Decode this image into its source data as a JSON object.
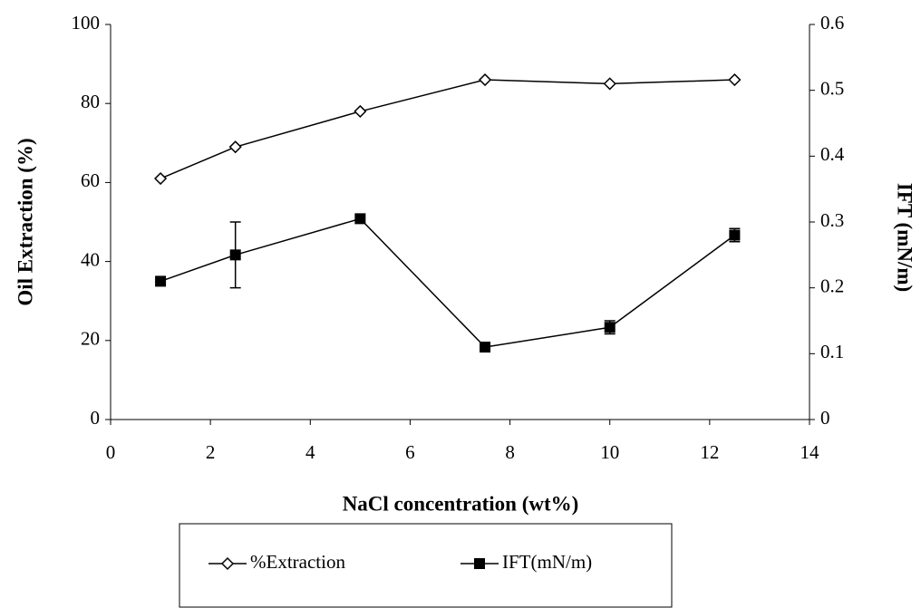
{
  "chart_data": {
    "type": "line",
    "xlabel": "NaCl concentration (wt%)",
    "ylabel": "Oil Extraction (%)",
    "y2label": "IFT (mN/m)",
    "x": [
      1,
      2.5,
      5,
      7.5,
      10,
      12.5
    ],
    "series": [
      {
        "name": "%Extraction",
        "color": "#000000",
        "marker": "diamond",
        "values": [
          61,
          69,
          78,
          86,
          85,
          86
        ]
      },
      {
        "name": "IFT(mN/m)",
        "color": "#000000",
        "marker": "square",
        "axis": "y2",
        "values": [
          0.21,
          0.25,
          0.305,
          0.11,
          0.14,
          0.28
        ],
        "errors": [
          null,
          0.05,
          null,
          null,
          0.01,
          0.01
        ]
      }
    ],
    "xlim": [
      0,
      14
    ],
    "xticks": [
      0,
      2,
      4,
      6,
      8,
      10,
      12,
      14
    ],
    "ylim": [
      0,
      100
    ],
    "yticks": [
      0,
      20,
      40,
      60,
      80,
      100
    ],
    "y2lim": [
      0,
      0.6
    ],
    "y2ticks": [
      0,
      0.1,
      0.2,
      0.3,
      0.4,
      0.5,
      0.6
    ],
    "grid": false,
    "legend": "bottom"
  }
}
